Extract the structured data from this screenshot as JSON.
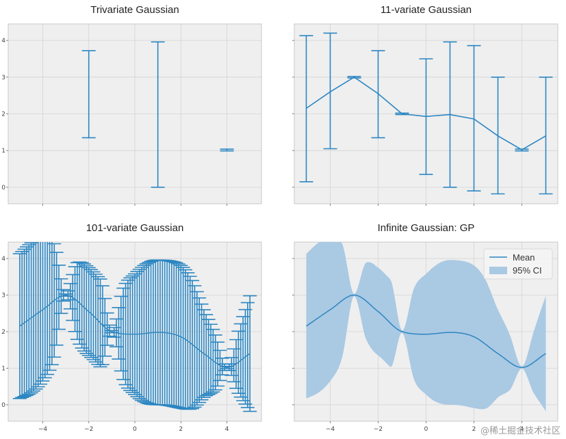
{
  "chart_data": [
    {
      "type": "errorbar",
      "title": "Trivariate Gaussian",
      "xlim": [
        -5.5,
        5.5
      ],
      "ylim": [
        -0.45,
        4.45
      ],
      "xticks": [
        -4,
        -2,
        0,
        2,
        4
      ],
      "yticks": [
        0,
        1,
        2,
        3,
        4
      ],
      "xticklabels": [
        "",
        "",
        "",
        "",
        ""
      ],
      "yticklabels": [
        "0",
        "1",
        "2",
        "3",
        "4"
      ],
      "grid": true,
      "points": [
        {
          "x": -2.0,
          "lower": 1.35,
          "upper": 3.72
        },
        {
          "x": 1.0,
          "lower": 0.0,
          "upper": 3.96
        },
        {
          "x": 4.0,
          "lower": 0.99,
          "upper": 1.04
        }
      ]
    },
    {
      "type": "errorbar",
      "title": "11-variate Gaussian",
      "xlim": [
        -5.5,
        5.5
      ],
      "ylim": [
        -0.45,
        4.45
      ],
      "xticks": [
        -4,
        -2,
        0,
        2,
        4
      ],
      "yticks": [
        0,
        1,
        2,
        3,
        4
      ],
      "xticklabels": [
        "",
        "",
        "",
        "",
        ""
      ],
      "yticklabels": [
        "",
        "",
        "",
        "",
        ""
      ],
      "grid": true,
      "x": [
        -5,
        -4,
        -3,
        -2,
        -1,
        0,
        1,
        2,
        3,
        4,
        5
      ],
      "mean": [
        2.15,
        2.6,
        3.0,
        2.55,
        2.0,
        1.93,
        1.98,
        1.86,
        1.4,
        1.02,
        1.4
      ],
      "lower": [
        0.15,
        1.05,
        2.98,
        1.35,
        1.98,
        0.35,
        0.0,
        -0.1,
        -0.18,
        0.99,
        -0.18
      ],
      "upper": [
        4.13,
        4.2,
        3.02,
        3.72,
        2.02,
        3.5,
        3.96,
        3.86,
        3.0,
        1.04,
        3.0
      ]
    },
    {
      "type": "errorbar",
      "title": "101-variate Gaussian",
      "xlim": [
        -5.5,
        5.5
      ],
      "ylim": [
        -0.45,
        4.45
      ],
      "xticks": [
        -4,
        -2,
        0,
        2,
        4
      ],
      "yticks": [
        0,
        1,
        2,
        3,
        4
      ],
      "xticklabels": [
        "−4",
        "−2",
        "0",
        "2",
        "4"
      ],
      "yticklabels": [
        "0",
        "1",
        "2",
        "3",
        "4"
      ],
      "grid": true,
      "x_range": [
        -5,
        5
      ],
      "n_points": 101,
      "mean_knots_x": [
        -5,
        -4,
        -3,
        -2,
        -1,
        0,
        1,
        2,
        3,
        4,
        5
      ],
      "mean_knots_y": [
        2.15,
        2.6,
        3.0,
        2.55,
        2.0,
        1.93,
        1.98,
        1.86,
        1.4,
        1.02,
        1.4
      ],
      "halfwidth_knots_x": [
        -5,
        -4.5,
        -4,
        -3.5,
        -3,
        -2.5,
        -2,
        -1.5,
        -1,
        -0.5,
        0,
        0.5,
        1,
        1.5,
        2,
        2.5,
        3,
        3.5,
        4,
        4.5,
        5
      ],
      "halfwidth_knots_y": [
        1.98,
        2.05,
        1.95,
        1.55,
        0.03,
        1.05,
        1.2,
        1.2,
        0.03,
        1.25,
        1.65,
        1.9,
        1.98,
        1.98,
        1.95,
        1.75,
        1.2,
        0.75,
        0.03,
        0.85,
        1.58
      ]
    },
    {
      "type": "area",
      "title": "Infinite Gaussian: GP",
      "xlim": [
        -5.5,
        5.5
      ],
      "ylim": [
        -0.45,
        4.45
      ],
      "xticks": [
        -4,
        -2,
        0,
        2,
        4
      ],
      "yticks": [
        0,
        1,
        2,
        3,
        4
      ],
      "xticklabels": [
        "−4",
        "−2",
        "0",
        "2",
        "4"
      ],
      "yticklabels": [
        "",
        "",
        "",
        "",
        ""
      ],
      "grid": true,
      "legend": {
        "position": "top-right",
        "entries": [
          "Mean",
          "95% CI"
        ]
      },
      "series": [
        {
          "name": "Mean",
          "kind": "line",
          "source": "mean_knots"
        },
        {
          "name": "95% CI",
          "kind": "band",
          "source": "halfwidth_knots"
        }
      ],
      "mean_knots_x": [
        -5,
        -4,
        -3,
        -2,
        -1,
        0,
        1,
        2,
        3,
        4,
        5
      ],
      "mean_knots_y": [
        2.15,
        2.6,
        3.0,
        2.55,
        2.0,
        1.93,
        1.98,
        1.86,
        1.4,
        1.02,
        1.4
      ],
      "halfwidth_knots_x": [
        -5,
        -4.5,
        -4,
        -3.5,
        -3,
        -2.5,
        -2,
        -1.5,
        -1,
        -0.5,
        0,
        0.5,
        1,
        1.5,
        2,
        2.5,
        3,
        3.5,
        4,
        4.5,
        5
      ],
      "halfwidth_knots_y": [
        1.98,
        2.05,
        1.95,
        1.55,
        0.03,
        1.05,
        1.2,
        1.2,
        0.03,
        1.25,
        1.65,
        1.9,
        1.98,
        1.98,
        1.95,
        1.75,
        1.2,
        0.75,
        0.03,
        0.85,
        1.58
      ]
    }
  ],
  "colors": {
    "line": "#2b86c2",
    "band": "#aac9e3",
    "panel_bg": "#efefef",
    "grid": "#d4d4d4",
    "spine": "#bdbdbd"
  },
  "watermark": "@稀土掘金技术社区"
}
